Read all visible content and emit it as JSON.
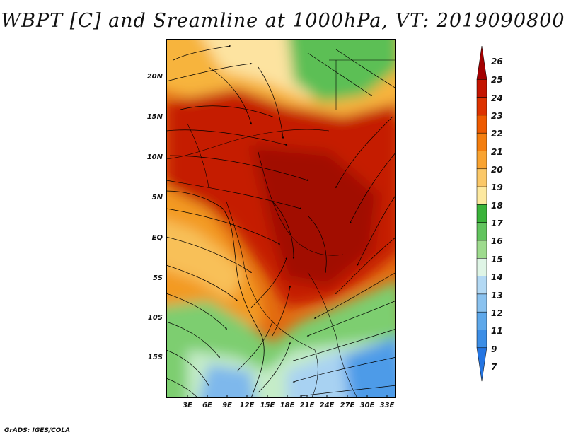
{
  "title": "WBPT [C] and Sreamline at 1000hPa, VT: 2019090800",
  "credit": "GrADS: IGES/COLA",
  "axes": {
    "lat_labels": [
      "20N",
      "15N",
      "10N",
      "5N",
      "EQ",
      "5S",
      "10S",
      "15S"
    ],
    "lon_labels": [
      "3E",
      "6E",
      "9E",
      "12E",
      "15E",
      "18E",
      "21E",
      "24E",
      "27E",
      "30E",
      "33E"
    ]
  },
  "colorbar": {
    "labels": [
      "26",
      "25",
      "24",
      "23",
      "22",
      "21",
      "20",
      "19",
      "18",
      "17",
      "16",
      "15",
      "14",
      "13",
      "12",
      "11",
      "9",
      "7"
    ],
    "colors": [
      "#a30000",
      "#c41400",
      "#dd3200",
      "#ee5a00",
      "#f47e0e",
      "#f9a330",
      "#fbc868",
      "#fde9a0",
      "#3ab33a",
      "#62c45e",
      "#9edb8e",
      "#dff5e6",
      "#b3d9f4",
      "#8ac2ef",
      "#5ea8ea",
      "#3c8ee6",
      "#2575e2"
    ]
  }
}
